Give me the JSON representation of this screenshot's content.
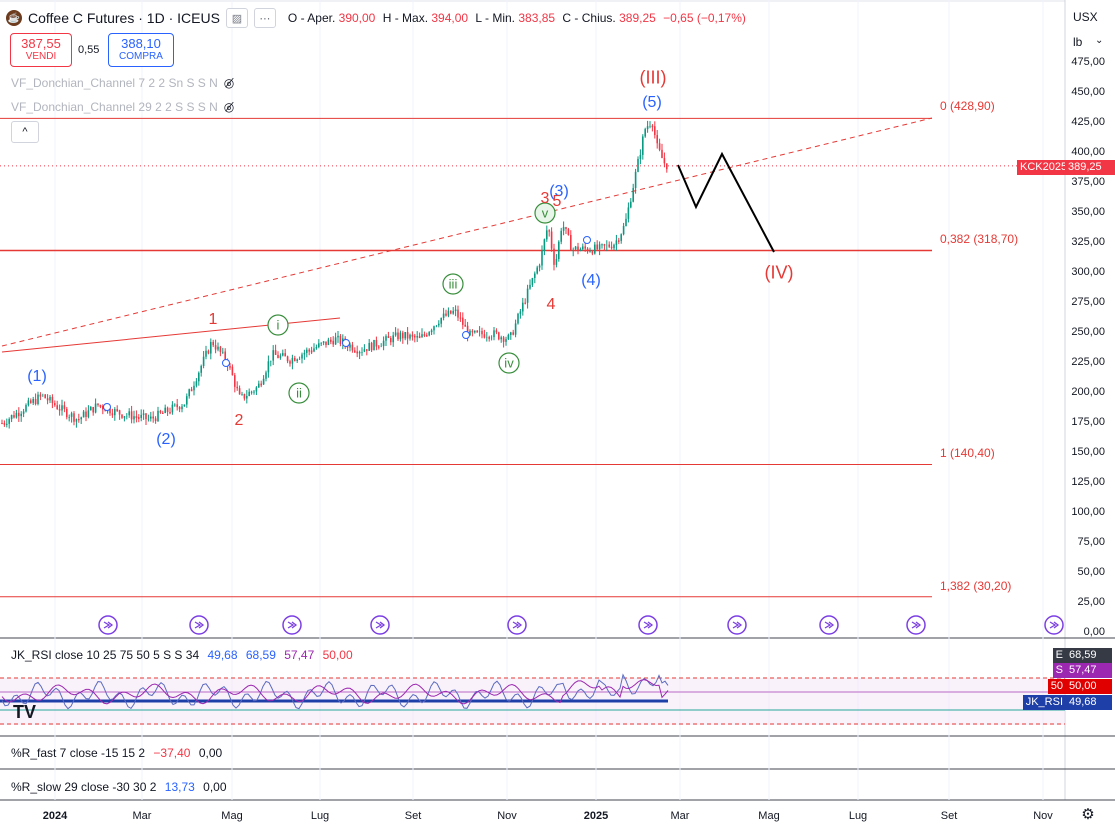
{
  "header": {
    "symbol_title": "Coffee C Futures · 1D · ICEUS",
    "ohlc": [
      {
        "label": "O",
        "sep": " - Aper.",
        "value": "390,00"
      },
      {
        "label": "H",
        "sep": " - Max.",
        "value": "394,00"
      },
      {
        "label": "L",
        "sep": " - Min.",
        "value": "383,85"
      },
      {
        "label": "C",
        "sep": " - Chius.",
        "value": "389,25"
      }
    ],
    "change": "−0,65 (−0,17%)",
    "sell_price": "387,55",
    "sell_label": "VENDI",
    "spread": "0,55",
    "buy_price": "388,10",
    "buy_label": "COMPRA",
    "collapse_glyph": "^"
  },
  "indicators": [
    "VF_Donchian_Channel 7 2 2 Sn S S N",
    "VF_Donchian_Channel 29 2 2 S S S N"
  ],
  "price_axis": {
    "currency": "USX",
    "unit": "lb",
    "ticks": [
      "475,00",
      "450,00",
      "425,00",
      "400,00",
      "375,00",
      "350,00",
      "325,00",
      "300,00",
      "275,00",
      "250,00",
      "225,00",
      "200,00",
      "175,00",
      "150,00",
      "125,00",
      "100,00",
      "75,00",
      "50,00",
      "25,00",
      "0,00"
    ],
    "last_symbol_tag": "KCK2025",
    "last_price": "389,25"
  },
  "fib_levels": [
    {
      "label": "0 (428,90)",
      "value": 428.9
    },
    {
      "label": "0,382 (318,70)",
      "value": 318.7
    },
    {
      "label": "1 (140,40)",
      "value": 140.4
    },
    {
      "label": "1,382 (30,20)",
      "value": 30.2
    }
  ],
  "wave_labels": [
    {
      "text": "(III)",
      "color": "#e53935"
    },
    {
      "text": "(5)",
      "color": "#2962ff"
    },
    {
      "text": "(3)",
      "color": "#2962ff"
    },
    {
      "text": "3",
      "color": "#e53935"
    },
    {
      "text": "5",
      "color": "#e53935"
    },
    {
      "text": "(4)",
      "color": "#2962ff"
    },
    {
      "text": "4",
      "color": "#e53935"
    },
    {
      "text": "(IV)",
      "color": "#e53935"
    },
    {
      "text": "(1)",
      "color": "#2962ff"
    },
    {
      "text": "(2)",
      "color": "#2962ff"
    },
    {
      "text": "1",
      "color": "#e53935"
    },
    {
      "text": "2",
      "color": "#e53935"
    },
    {
      "text": "i",
      "color": "#388e3c"
    },
    {
      "text": "ii",
      "color": "#388e3c"
    },
    {
      "text": "iii",
      "color": "#388e3c"
    },
    {
      "text": "iv",
      "color": "#388e3c"
    },
    {
      "text": "v",
      "color": "#388e3c"
    }
  ],
  "rsi_pane": {
    "title": "JK_RSI close 10 25 75 50 5 S S 34",
    "values": [
      {
        "v": "49,68",
        "color": "#2962ff"
      },
      {
        "v": "68,59",
        "color": "#2962ff"
      },
      {
        "v": "57,47",
        "color": "#9c27b0"
      },
      {
        "v": "50,00",
        "color": "#f23645"
      }
    ],
    "tags": [
      {
        "k": "E",
        "v": "68,59",
        "bg": "#363a45"
      },
      {
        "k": "S",
        "v": "57,47",
        "bg": "#9c27b0"
      },
      {
        "k": "50",
        "v": "50,00",
        "bg": "#e00000"
      },
      {
        "k": "JK_RSI",
        "v": "49,68",
        "bg": "#1e3ea8"
      }
    ],
    "logo": "TV"
  },
  "r_fast_pane": {
    "title": "%R_fast 7 close -15 15 2",
    "values": [
      {
        "v": "−37,40",
        "color": "#f23645"
      },
      {
        "v": "0,00",
        "color": "#131722"
      }
    ]
  },
  "r_slow_pane": {
    "title": "%R_slow 29 close -30 30 2",
    "values": [
      {
        "v": "13,73",
        "color": "#2962ff"
      },
      {
        "v": "0,00",
        "color": "#131722"
      }
    ]
  },
  "time_axis": [
    "2024",
    "Mar",
    "Mag",
    "Lug",
    "Set",
    "Nov",
    "2025",
    "Mar",
    "Mag",
    "Lug",
    "Set",
    "Nov"
  ],
  "colors": {
    "up": "#089981",
    "down": "#f23645",
    "fib": "#e53935",
    "projection": "#000000",
    "accent": "#2962ff"
  }
}
